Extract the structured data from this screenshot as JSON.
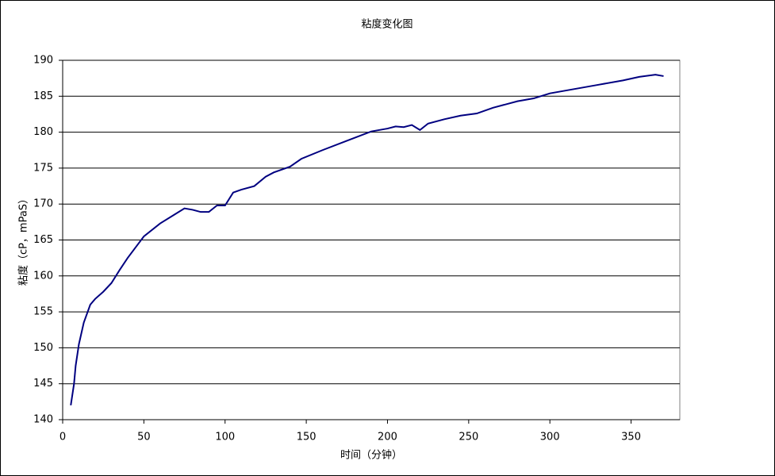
{
  "chart_data": {
    "type": "line",
    "title": "粘度变化图",
    "x_label": "时间（分钟）",
    "y_label": "粘度（cP，mPaS）",
    "x": [
      5,
      7,
      8,
      10,
      13,
      17,
      20,
      25,
      30,
      35,
      40,
      45,
      50,
      60,
      70,
      75,
      80,
      85,
      90,
      95,
      100,
      105,
      110,
      118,
      125,
      130,
      140,
      147,
      160,
      175,
      190,
      200,
      205,
      210,
      215,
      220,
      225,
      235,
      245,
      255,
      265,
      280,
      290,
      300,
      310,
      320,
      330,
      345,
      355,
      365,
      370
    ],
    "series": [
      {
        "name": "粘度",
        "color": "#000080",
        "values": [
          142,
          145,
          147.5,
          150.5,
          153.5,
          156,
          156.8,
          157.8,
          159,
          160.8,
          162.5,
          164,
          165.5,
          167.3,
          168.7,
          169.4,
          169.2,
          168.9,
          168.9,
          169.8,
          169.8,
          171.6,
          172,
          172.5,
          173.8,
          174.4,
          175.2,
          176.3,
          177.5,
          178.8,
          180.1,
          180.5,
          180.8,
          180.7,
          181,
          180.3,
          181.2,
          181.8,
          182.3,
          182.6,
          183.4,
          184.3,
          184.7,
          185.4,
          185.8,
          186.2,
          186.6,
          187.2,
          187.7,
          188,
          187.8
        ]
      }
    ],
    "xlim": [
      0,
      380
    ],
    "xticks": [
      0,
      50,
      100,
      150,
      200,
      250,
      300,
      350
    ],
    "ylim": [
      140,
      190
    ],
    "yticks": [
      140,
      145,
      150,
      155,
      160,
      165,
      170,
      175,
      180,
      185,
      190
    ],
    "grid": true
  }
}
